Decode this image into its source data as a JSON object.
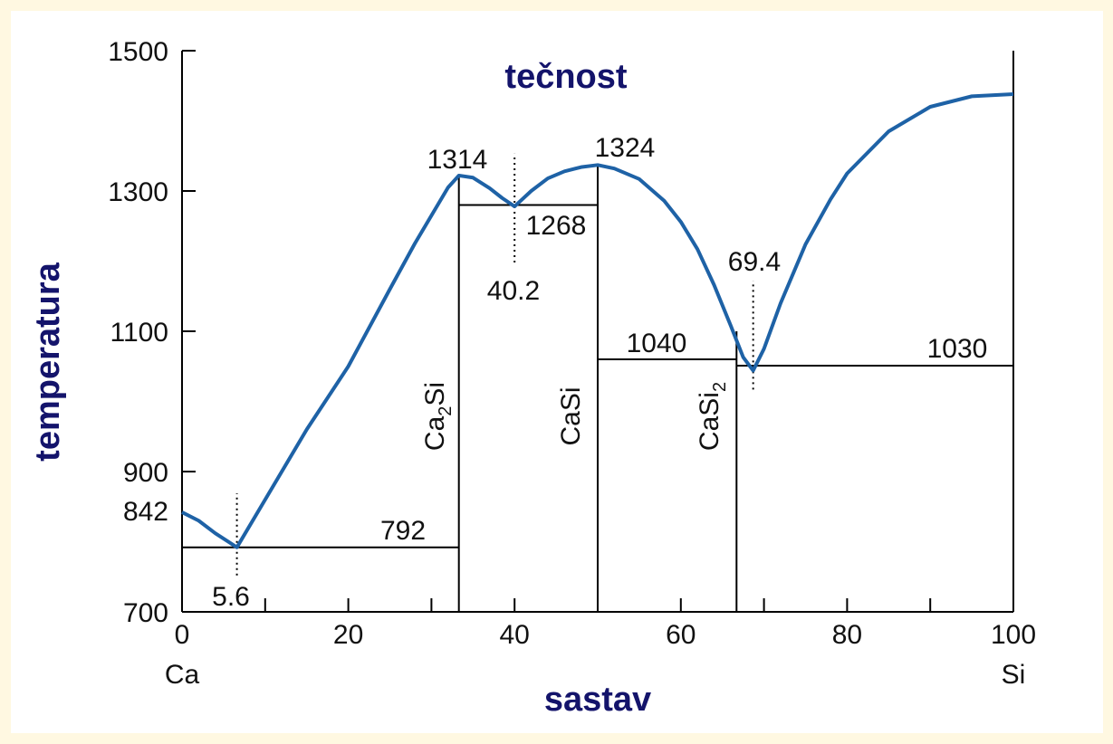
{
  "chart_data": {
    "type": "phase_diagram",
    "title": "tečnost",
    "xlabel": "sastav",
    "ylabel": "temperatura",
    "x_end_labels": [
      "Ca",
      "Si"
    ],
    "xlim": [
      0,
      100
    ],
    "ylim": [
      700,
      1500
    ],
    "xticks": [
      0,
      20,
      40,
      60,
      80,
      100
    ],
    "xminorticks": [
      10,
      30,
      50,
      70,
      90
    ],
    "yticks": [
      700,
      900,
      1100,
      1300,
      1500
    ],
    "liquidus": {
      "color": "#1e62a6",
      "x": [
        0,
        2,
        4,
        6.6,
        10,
        15,
        20,
        25,
        28,
        30,
        32,
        33.3,
        35,
        37,
        38.5,
        40,
        42,
        44,
        46,
        48,
        50,
        52,
        55,
        58,
        60,
        62,
        64,
        66,
        67.5,
        68.7,
        70,
        72,
        75,
        78,
        80,
        85,
        90,
        95,
        100
      ],
      "y": [
        842,
        830,
        812,
        792,
        860,
        960,
        1050,
        1160,
        1225,
        1265,
        1305,
        1322,
        1319,
        1304,
        1290,
        1278,
        1300,
        1318,
        1328,
        1334,
        1337,
        1332,
        1317,
        1286,
        1256,
        1217,
        1166,
        1108,
        1063,
        1044,
        1075,
        1140,
        1224,
        1288,
        1325,
        1385,
        1420,
        1435,
        1438
      ]
    },
    "phase_lines": [
      {
        "x": [
          0,
          33.3
        ],
        "y": [
          792,
          792
        ]
      },
      {
        "x": [
          33.3,
          50
        ],
        "y": [
          1280,
          1280
        ]
      },
      {
        "x": [
          50,
          66.7
        ],
        "y": [
          1060,
          1060
        ]
      },
      {
        "x": [
          66.7,
          100
        ],
        "y": [
          1051,
          1051
        ]
      },
      {
        "x": [
          33.3,
          33.3
        ],
        "y": [
          700,
          1322
        ]
      },
      {
        "x": [
          50,
          50
        ],
        "y": [
          700,
          1337
        ]
      },
      {
        "x": [
          66.7,
          66.7
        ],
        "y": [
          700,
          1100
        ]
      }
    ],
    "dotted_lines": [
      {
        "x": [
          6.6,
          6.6
        ],
        "y": [
          752,
          869
        ]
      },
      {
        "x": [
          40,
          40
        ],
        "y": [
          1198,
          1353
        ]
      },
      {
        "x": [
          68.7,
          68.7
        ],
        "y": [
          1017,
          1172
        ]
      }
    ],
    "compounds": [
      {
        "parts": [
          "Ca",
          "2",
          "Si"
        ]
      },
      {
        "parts": [
          "CaSi"
        ]
      },
      {
        "parts": [
          "CaSi",
          "2"
        ]
      }
    ],
    "annotations": [
      "1314",
      "1324",
      "1268",
      "40.2",
      "69.4",
      "1040",
      "1030",
      "792",
      "5.6",
      "842"
    ]
  }
}
